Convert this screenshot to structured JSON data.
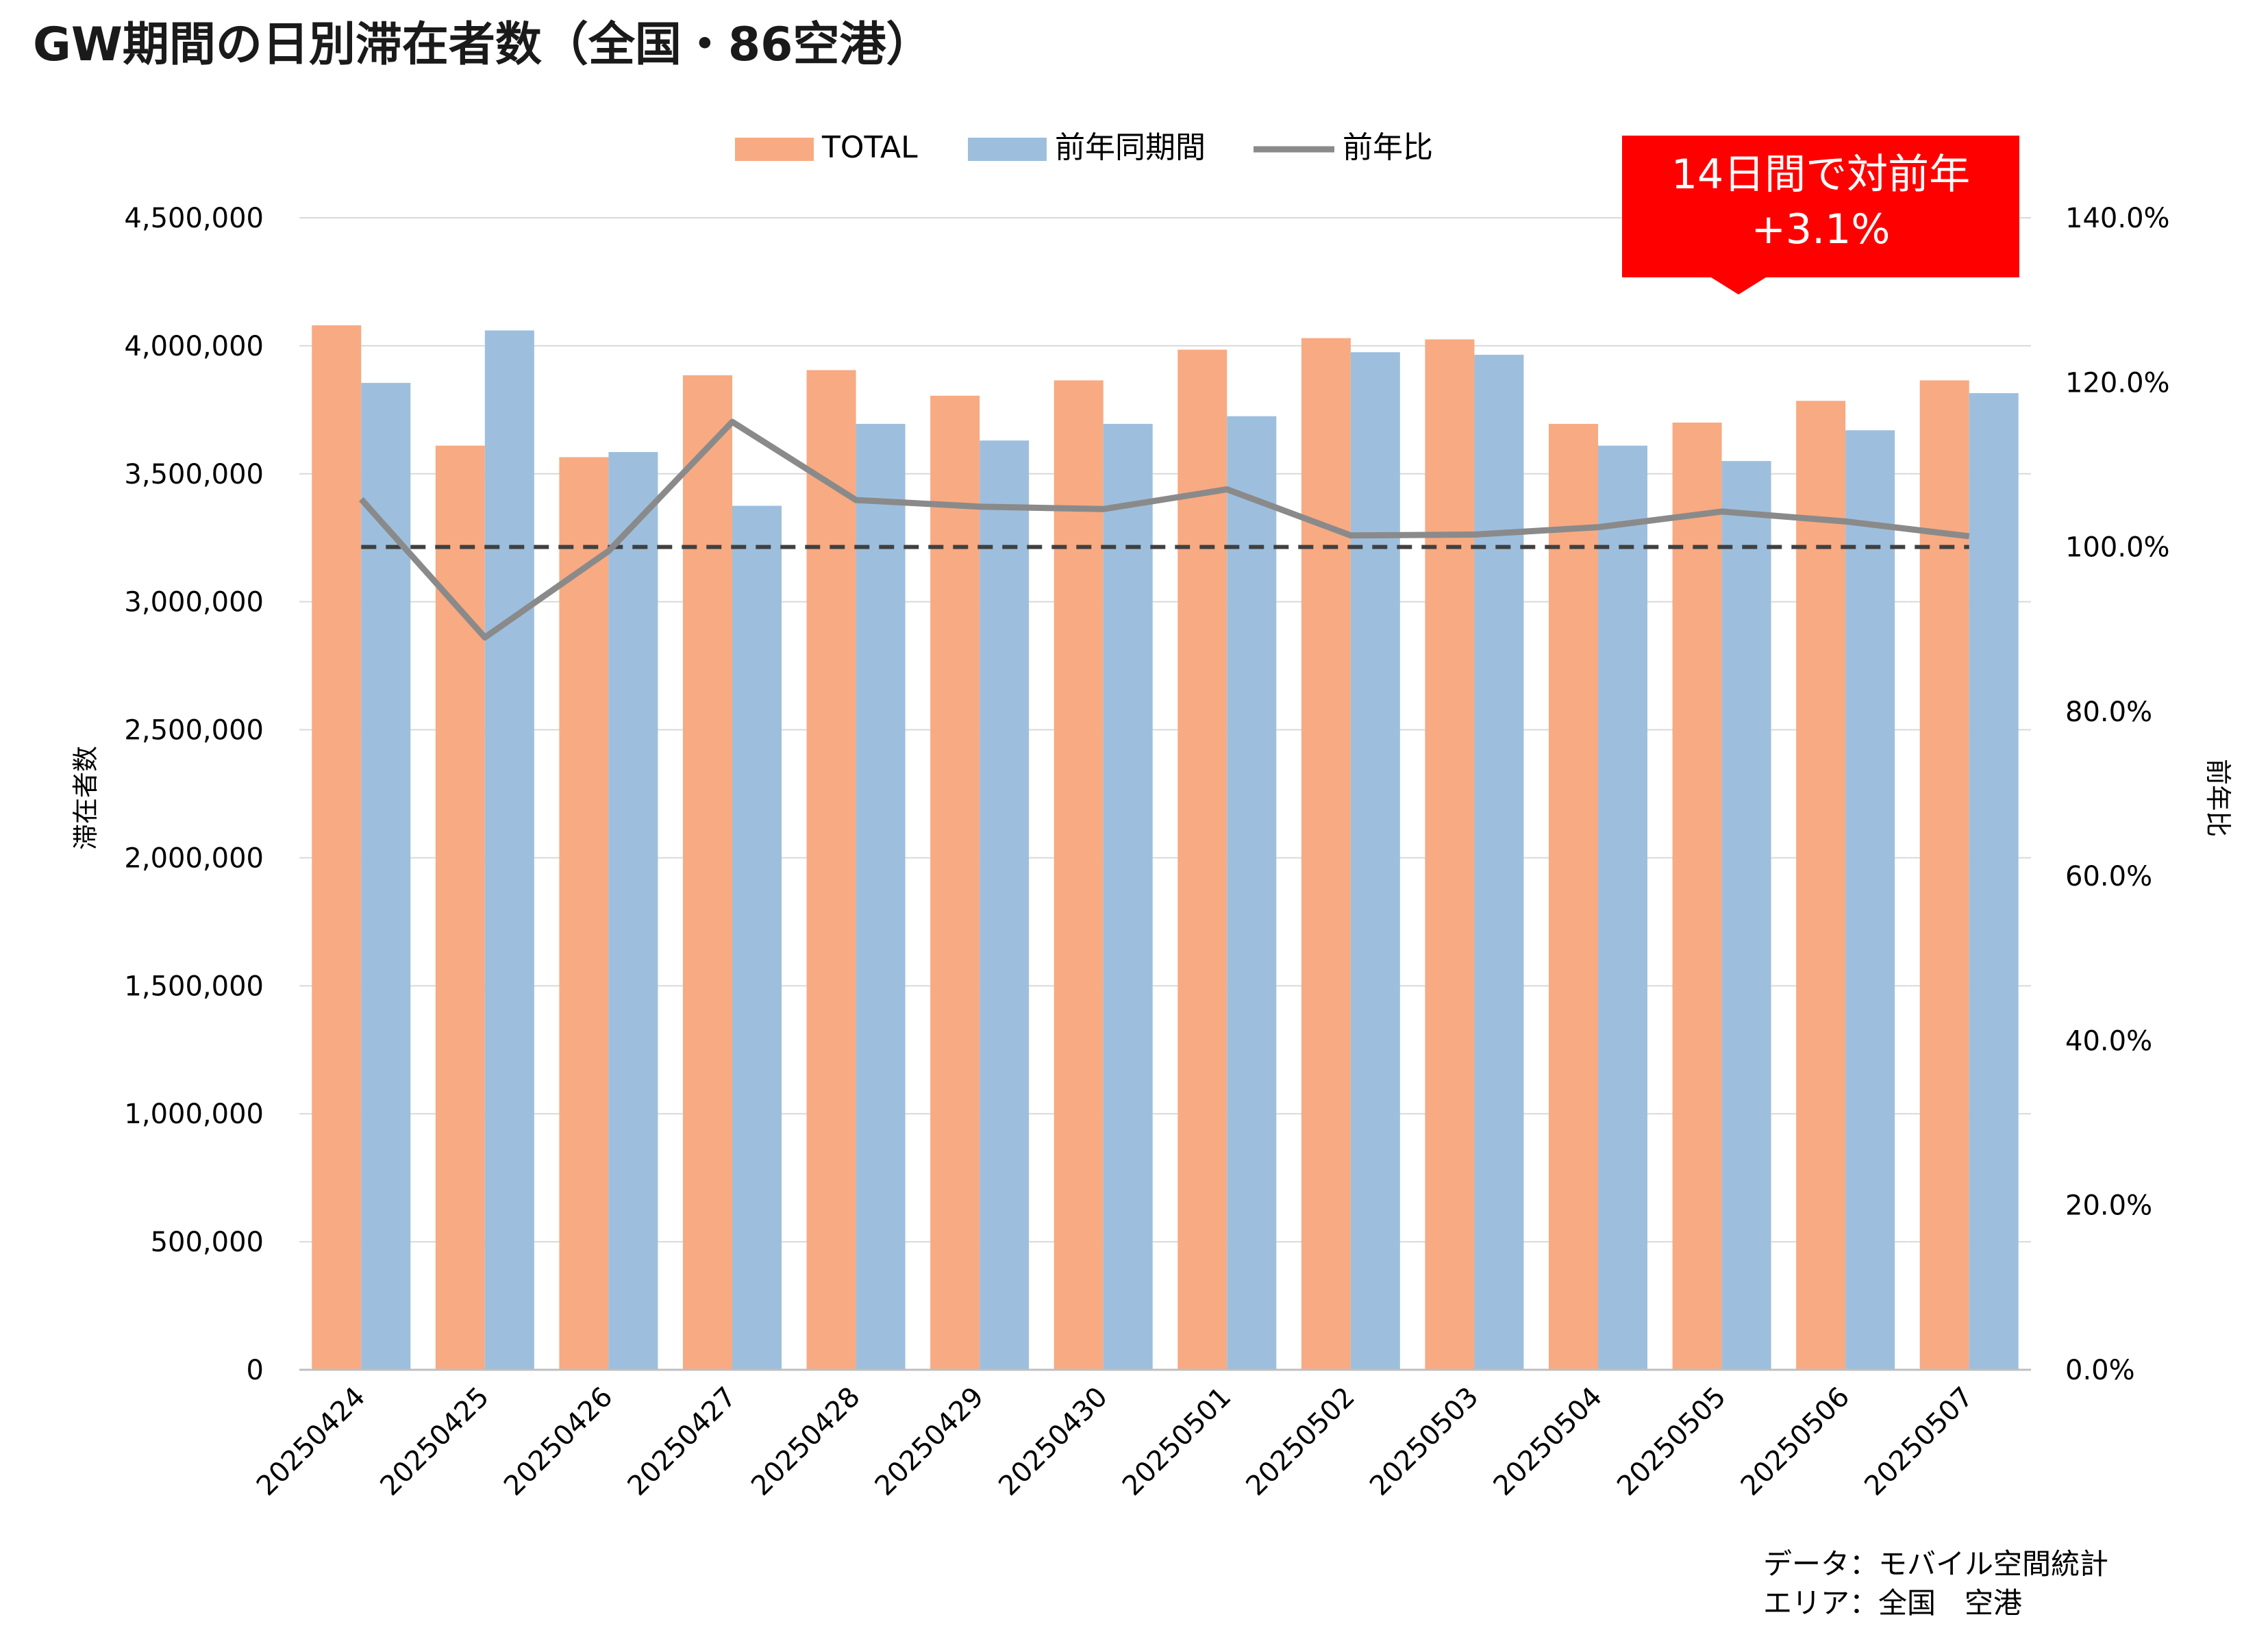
{
  "colors": {
    "total": "#F8AA82",
    "prev": "#9DBFDD",
    "ratio": "#8A8A8A",
    "baseline": "#404040",
    "callout_bg": "#FF0000",
    "callout_text": "#FFFFFF",
    "grid": "#D9D9D9",
    "text": "#000000",
    "title": "#1A1A1A"
  },
  "callout": {
    "line1": "14日間で対前年",
    "line2": "+3.1%"
  },
  "footnote": {
    "line1": "データ：モバイル空間統計",
    "line2": "エリア：全国　空港"
  },
  "chart_data": {
    "type": "bar",
    "title": "GW期間の日別滞在者数（全国・86空港）",
    "ylabel": "滞在者数",
    "y2label": "前年比",
    "ylim": [
      0,
      4500000
    ],
    "y2lim": [
      0,
      140
    ],
    "yticks": [
      "0",
      "500,000",
      "1,000,000",
      "1,500,000",
      "2,000,000",
      "2,500,000",
      "3,000,000",
      "3,500,000",
      "4,000,000",
      "4,500,000"
    ],
    "y2ticks": [
      "0.0%",
      "20.0%",
      "40.0%",
      "60.0%",
      "80.0%",
      "100.0%",
      "120.0%",
      "140.0%"
    ],
    "grid": true,
    "legend_position": "top-center",
    "categories": [
      "20250424",
      "20250425",
      "20250426",
      "20250427",
      "20250428",
      "20250429",
      "20250430",
      "20250501",
      "20250502",
      "20250503",
      "20250504",
      "20250505",
      "20250506",
      "20250507"
    ],
    "series": [
      {
        "name": "TOTAL",
        "type": "bar",
        "axis": "left",
        "values": [
          4080000,
          3610000,
          3565000,
          3885000,
          3905000,
          3805000,
          3865000,
          3985000,
          4030000,
          4025000,
          3695000,
          3700000,
          3785000,
          3865000
        ]
      },
      {
        "name": "前年同期間",
        "type": "bar",
        "axis": "left",
        "values": [
          3855000,
          4060000,
          3585000,
          3375000,
          3695000,
          3630000,
          3695000,
          3725000,
          3975000,
          3965000,
          3610000,
          3550000,
          3670000,
          3815000
        ]
      },
      {
        "name": "前年比",
        "type": "line",
        "axis": "right",
        "values": [
          105.8,
          89.0,
          99.5,
          115.2,
          105.7,
          104.9,
          104.6,
          107.0,
          101.4,
          101.5,
          102.4,
          104.3,
          103.1,
          101.3
        ]
      }
    ],
    "reference_line": {
      "axis": "right",
      "value": 100,
      "style": "dashed"
    }
  }
}
